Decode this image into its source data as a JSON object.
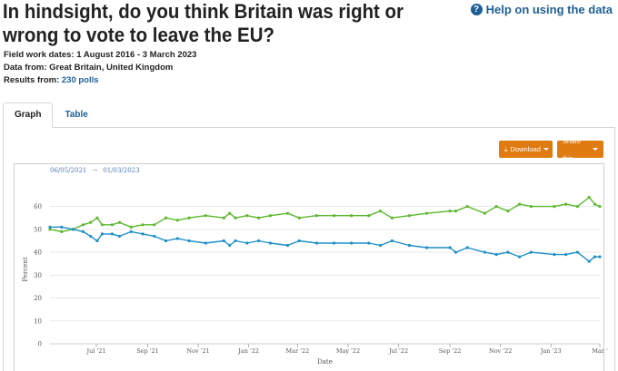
{
  "header": {
    "title": "In hindsight, do you think Britain was right or wrong to vote to leave the EU?",
    "help_label": "Help on using the data",
    "fieldwork_label": "Field work dates:",
    "fieldwork_value": "1 August 2016 - 3 March 2023",
    "datafrom_label": "Data from:",
    "datafrom_value": "Great Britain, United Kingdom",
    "results_label": "Results from:",
    "results_value": "230 polls"
  },
  "tabs": [
    {
      "label": "Graph",
      "active": true
    },
    {
      "label": "Table",
      "active": false
    }
  ],
  "toolbar": {
    "download_label": "Download",
    "share_label": "Share this",
    "button_color": "#e07b12"
  },
  "range": {
    "start": "06/05/2021",
    "separator": "→",
    "end": "01/03/2023"
  },
  "colors": {
    "wrong_series": "#5cb82c",
    "right_series": "#1e8fc8",
    "link": "#1f5f96"
  },
  "chart_data": {
    "type": "line",
    "xlabel": "Date",
    "ylabel": "Percent",
    "ylim": [
      0,
      65
    ],
    "yticks": [
      0,
      10,
      20,
      30,
      40,
      50,
      60
    ],
    "grid": true,
    "xtick_labels": [
      "Jul '21",
      "Sep '21",
      "Nov '21",
      "Jan '22",
      "Mar '22",
      "May '22",
      "Jul '22",
      "Sep '22",
      "Nov '22",
      "Jan '23",
      "Mar '"
    ],
    "xtick_dates": [
      "2021-07-01",
      "2021-09-01",
      "2021-11-01",
      "2022-01-01",
      "2022-03-01",
      "2022-05-01",
      "2022-07-01",
      "2022-09-01",
      "2022-11-01",
      "2023-01-01",
      "2023-03-01"
    ],
    "x_range": [
      "2021-05-06",
      "2023-03-01"
    ],
    "series": [
      {
        "color": "#5cb82c",
        "points": [
          [
            "2021-05-06",
            50
          ],
          [
            "2021-05-20",
            49
          ],
          [
            "2021-06-03",
            50
          ],
          [
            "2021-06-15",
            52
          ],
          [
            "2021-06-24",
            53
          ],
          [
            "2021-07-02",
            55
          ],
          [
            "2021-07-08",
            52
          ],
          [
            "2021-07-20",
            52
          ],
          [
            "2021-07-29",
            53
          ],
          [
            "2021-08-12",
            51
          ],
          [
            "2021-08-26",
            52
          ],
          [
            "2021-09-09",
            52
          ],
          [
            "2021-09-23",
            55
          ],
          [
            "2021-10-07",
            54
          ],
          [
            "2021-10-21",
            55
          ],
          [
            "2021-11-10",
            56
          ],
          [
            "2021-12-02",
            55
          ],
          [
            "2021-12-09",
            57
          ],
          [
            "2021-12-16",
            55
          ],
          [
            "2021-12-30",
            56
          ],
          [
            "2022-01-13",
            55
          ],
          [
            "2022-01-27",
            56
          ],
          [
            "2022-02-17",
            57
          ],
          [
            "2022-03-03",
            55
          ],
          [
            "2022-03-24",
            56
          ],
          [
            "2022-04-14",
            56
          ],
          [
            "2022-05-05",
            56
          ],
          [
            "2022-05-26",
            56
          ],
          [
            "2022-06-09",
            58
          ],
          [
            "2022-06-23",
            55
          ],
          [
            "2022-07-14",
            56
          ],
          [
            "2022-08-04",
            57
          ],
          [
            "2022-09-01",
            58
          ],
          [
            "2022-09-08",
            58
          ],
          [
            "2022-09-22",
            60
          ],
          [
            "2022-10-13",
            57
          ],
          [
            "2022-10-27",
            60
          ],
          [
            "2022-11-10",
            58
          ],
          [
            "2022-11-24",
            61
          ],
          [
            "2022-12-08",
            60
          ],
          [
            "2023-01-05",
            60
          ],
          [
            "2023-01-19",
            61
          ],
          [
            "2023-02-02",
            60
          ],
          [
            "2023-02-16",
            64
          ],
          [
            "2023-02-23",
            61
          ],
          [
            "2023-03-01",
            60
          ]
        ]
      },
      {
        "color": "#1e8fc8",
        "points": [
          [
            "2021-05-06",
            51
          ],
          [
            "2021-05-20",
            51
          ],
          [
            "2021-06-03",
            50
          ],
          [
            "2021-06-15",
            49
          ],
          [
            "2021-06-24",
            47
          ],
          [
            "2021-07-02",
            45
          ],
          [
            "2021-07-08",
            48
          ],
          [
            "2021-07-20",
            48
          ],
          [
            "2021-07-29",
            47
          ],
          [
            "2021-08-12",
            49
          ],
          [
            "2021-08-26",
            48
          ],
          [
            "2021-09-09",
            47
          ],
          [
            "2021-09-23",
            45
          ],
          [
            "2021-10-07",
            46
          ],
          [
            "2021-10-21",
            45
          ],
          [
            "2021-11-10",
            44
          ],
          [
            "2021-12-02",
            45
          ],
          [
            "2021-12-09",
            43
          ],
          [
            "2021-12-16",
            45
          ],
          [
            "2021-12-30",
            44
          ],
          [
            "2022-01-13",
            45
          ],
          [
            "2022-01-27",
            44
          ],
          [
            "2022-02-17",
            43
          ],
          [
            "2022-03-03",
            45
          ],
          [
            "2022-03-24",
            44
          ],
          [
            "2022-04-14",
            44
          ],
          [
            "2022-05-05",
            44
          ],
          [
            "2022-05-26",
            44
          ],
          [
            "2022-06-09",
            43
          ],
          [
            "2022-06-23",
            45
          ],
          [
            "2022-07-14",
            43
          ],
          [
            "2022-08-04",
            42
          ],
          [
            "2022-09-01",
            42
          ],
          [
            "2022-09-08",
            40
          ],
          [
            "2022-09-22",
            42
          ],
          [
            "2022-10-13",
            40
          ],
          [
            "2022-10-27",
            39
          ],
          [
            "2022-11-10",
            40
          ],
          [
            "2022-11-24",
            38
          ],
          [
            "2022-12-08",
            40
          ],
          [
            "2023-01-05",
            39
          ],
          [
            "2023-01-19",
            39
          ],
          [
            "2023-02-02",
            40
          ],
          [
            "2023-02-16",
            36
          ],
          [
            "2023-02-23",
            38
          ],
          [
            "2023-03-01",
            38
          ]
        ]
      }
    ]
  }
}
